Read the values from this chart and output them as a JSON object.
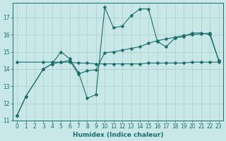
{
  "xlabel": "Humidex (Indice chaleur)",
  "bg_color": "#c8e8e8",
  "line_color": "#1a6e6a",
  "grid_color": "#b0cccc",
  "xlim": [
    -0.5,
    23.5
  ],
  "ylim": [
    11.0,
    17.85
  ],
  "yticks": [
    11,
    12,
    13,
    14,
    15,
    16,
    17
  ],
  "xticks": [
    0,
    1,
    2,
    3,
    4,
    5,
    6,
    7,
    8,
    9,
    10,
    11,
    12,
    13,
    14,
    15,
    16,
    17,
    18,
    19,
    20,
    21,
    22,
    23
  ],
  "curve_jagged_x": [
    0,
    1,
    3,
    4,
    5,
    6,
    7,
    8,
    9,
    10,
    11,
    12,
    13,
    14,
    15,
    16,
    17,
    18,
    19,
    20,
    21,
    22,
    23
  ],
  "curve_jagged_y": [
    11.3,
    12.4,
    14.0,
    14.3,
    15.0,
    14.6,
    13.8,
    12.3,
    12.5,
    17.6,
    16.4,
    16.5,
    17.1,
    17.5,
    17.5,
    15.6,
    15.3,
    15.8,
    15.9,
    16.1,
    16.1,
    16.0,
    14.5
  ],
  "curve_trend_x": [
    0,
    1,
    3,
    4,
    5,
    6,
    7,
    8,
    9,
    10,
    11,
    12,
    13,
    14,
    15,
    16,
    17,
    18,
    19,
    20,
    21,
    22,
    23
  ],
  "curve_trend_y": [
    11.3,
    12.4,
    14.0,
    14.3,
    14.4,
    14.5,
    13.7,
    13.9,
    13.95,
    14.95,
    15.0,
    15.1,
    15.2,
    15.3,
    15.5,
    15.65,
    15.75,
    15.85,
    15.95,
    16.0,
    16.05,
    16.1,
    14.5
  ],
  "curve_flat_x": [
    0,
    3,
    4,
    5,
    6,
    7,
    8,
    9,
    10,
    11,
    12,
    13,
    14,
    15,
    16,
    17,
    18,
    19,
    20,
    21,
    22,
    23
  ],
  "curve_flat_y": [
    14.4,
    14.4,
    14.4,
    14.4,
    14.4,
    14.35,
    14.35,
    14.3,
    14.3,
    14.3,
    14.3,
    14.3,
    14.3,
    14.35,
    14.35,
    14.35,
    14.35,
    14.35,
    14.4,
    14.4,
    14.4,
    14.4
  ],
  "markersize": 2.5
}
